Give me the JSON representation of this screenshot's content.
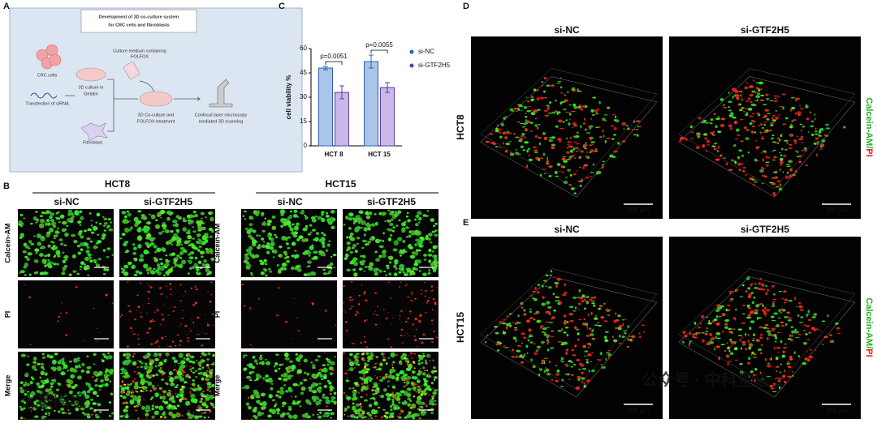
{
  "panel_labels": [
    "A",
    "B",
    "C",
    "D",
    "E"
  ],
  "panel_a": {
    "title": [
      "Development of 3D co-culture system",
      "for CRC cells and fibroblasts"
    ],
    "crc_cells": "CRC cells",
    "transfection": "Transfection of siRNA",
    "culture_3d": [
      "3D culture in",
      "Gelatin"
    ],
    "medium": [
      "Culture medium containing",
      "FOLFOX"
    ],
    "co_culture": [
      "3D Co-culture and",
      "FOLFOX treatment"
    ],
    "fibroblast": "Fibroblast",
    "scanning": [
      "Confocal laser microscopy",
      "mediated 3D scanning"
    ]
  },
  "chart_data": {
    "type": "bar",
    "ylabel": "cell viability %",
    "categories": [
      "HCT 8",
      "HCT 15"
    ],
    "series": [
      {
        "name": "si-NC",
        "color": "#a9c6ea",
        "edge": "#2f5fa8",
        "values": [
          48,
          52
        ],
        "errors": [
          1,
          4
        ]
      },
      {
        "name": "si-GTF2H5",
        "color": "#c9b9ea",
        "edge": "#5e3c99",
        "values": [
          33,
          36
        ],
        "errors": [
          4,
          3
        ]
      }
    ],
    "annotations": [
      "p=0.0051",
      "p=0.0055"
    ],
    "ylim": [
      0,
      60
    ],
    "yticks": [
      0,
      15,
      30,
      45,
      60
    ],
    "legend": "right"
  },
  "panel_b": {
    "groups": [
      {
        "title": "HCT8",
        "columns": [
          "si-NC",
          "si-GTF2H5"
        ]
      },
      {
        "title": "HCT15",
        "columns": [
          "si-NC",
          "si-GTF2H5"
        ]
      }
    ],
    "rows": [
      "Calcein-AM",
      "PI",
      "Merge"
    ],
    "scale_bar": "100 μm"
  },
  "panel_d": {
    "columns": [
      "si-NC",
      "si-GTF2H5"
    ],
    "row": "HCT8",
    "stain": [
      "Calcein-AM/",
      "PI"
    ],
    "scale_bar": "100 μm"
  },
  "panel_e": {
    "columns": [
      "si-NC",
      "si-GTF2H5"
    ],
    "row": "HCT15",
    "stain": [
      "Calcein-AM/",
      "PI"
    ],
    "scale_bar": "100 μm"
  },
  "watermarks": [
    "大数跨境",
    "公众号 · 中科生信"
  ]
}
